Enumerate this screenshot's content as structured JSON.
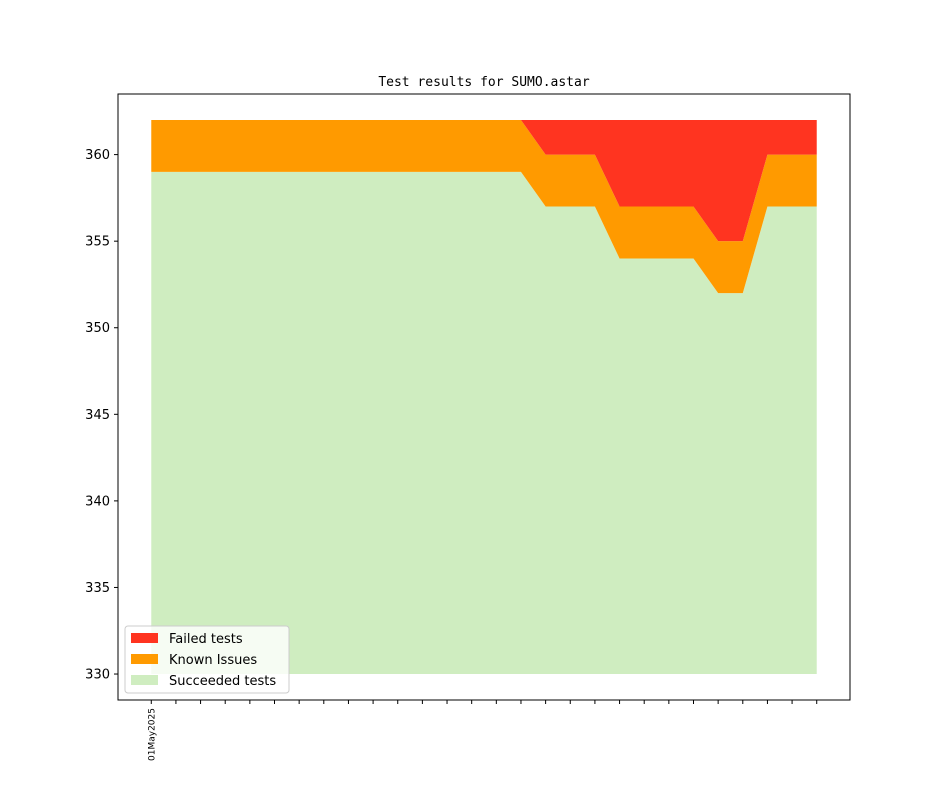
{
  "chart_data": {
    "type": "area",
    "title": "Test results for SUMO.astar",
    "xlabel": "",
    "ylabel": "",
    "x_tick_labels": [
      "01May2025"
    ],
    "ylim": [
      328.5,
      363.5
    ],
    "y_ticks": [
      330,
      335,
      340,
      345,
      350,
      355,
      360
    ],
    "baseline": 330,
    "x": [
      0,
      1,
      2,
      3,
      4,
      5,
      6,
      7,
      8,
      9,
      10,
      11,
      12,
      13,
      14,
      15,
      16,
      17,
      18,
      19,
      20,
      21,
      22,
      23,
      24,
      25,
      26,
      27
    ],
    "xlim": [
      -1.35,
      28.35
    ],
    "series": [
      {
        "name": "Succeeded tests",
        "color": "#cfedc0",
        "values": [
          359,
          359,
          359,
          359,
          359,
          359,
          359,
          359,
          359,
          359,
          359,
          359,
          359,
          359,
          359,
          359,
          357,
          357,
          357,
          354,
          354,
          354,
          354,
          352,
          352,
          357,
          357,
          357
        ]
      },
      {
        "name": "Known Issues",
        "color": "#ff9a00",
        "values": [
          3,
          3,
          3,
          3,
          3,
          3,
          3,
          3,
          3,
          3,
          3,
          3,
          3,
          3,
          3,
          3,
          3,
          3,
          3,
          3,
          3,
          3,
          3,
          3,
          3,
          3,
          3,
          3
        ]
      },
      {
        "name": "Failed tests",
        "color": "#ff3420",
        "values": [
          0,
          0,
          0,
          0,
          0,
          0,
          0,
          0,
          0,
          0,
          0,
          0,
          0,
          0,
          0,
          0,
          2,
          2,
          2,
          5,
          5,
          5,
          5,
          7,
          7,
          2,
          2,
          2
        ]
      }
    ],
    "legend": {
      "location": "lower-left",
      "entries": [
        {
          "label": "Failed tests",
          "color": "#ff3420"
        },
        {
          "label": "Known Issues",
          "color": "#ff9a00"
        },
        {
          "label": "Succeeded tests",
          "color": "#cfedc0"
        }
      ]
    }
  }
}
